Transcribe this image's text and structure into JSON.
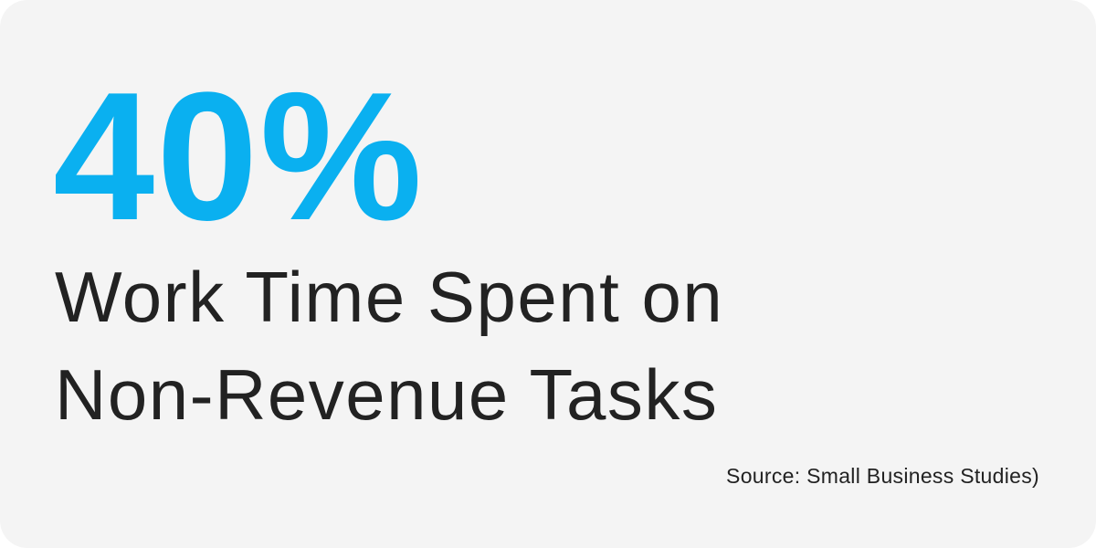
{
  "stat": {
    "value": "40%",
    "color": "#0AB0F0"
  },
  "description": {
    "lines": [
      "Work Time Spent on",
      "Non-Revenue Tasks"
    ]
  },
  "source": "Source: Small Business Studies)"
}
